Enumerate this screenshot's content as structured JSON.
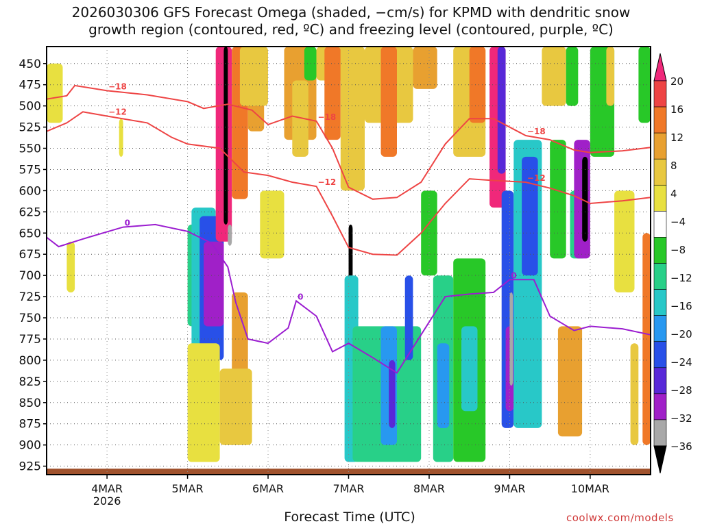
{
  "title_lines": [
    "2026030306 GFS Forecast Omega (shaded, −cm/s) for KPMD with dendritic snow",
    "growth region (contoured, red, ºC) and freezing level (contoured, purple, ºC)"
  ],
  "credit": "coolwx.com/models",
  "chart_data": {
    "type": "heatmap",
    "title": "2026030306 GFS Forecast Omega (shaded, −cm/s) for KPMD with dendritic snow growth region (contoured, red, ºC) and freezing level (contoured, purple, ºC)",
    "xlabel": "Forecast Time (UTC)",
    "ylabel": "",
    "y_axis": {
      "ticks": [
        450,
        475,
        500,
        525,
        550,
        575,
        600,
        625,
        650,
        675,
        700,
        725,
        750,
        775,
        800,
        825,
        850,
        875,
        900,
        925
      ],
      "range": [
        430,
        935
      ],
      "inverted": true
    },
    "x_axis": {
      "tick_labels": [
        {
          "day": 4,
          "label": "4MAR",
          "sub": "2026"
        },
        {
          "day": 5,
          "label": "5MAR",
          "sub": ""
        },
        {
          "day": 6,
          "label": "6MAR",
          "sub": ""
        },
        {
          "day": 7,
          "label": "7MAR",
          "sub": ""
        },
        {
          "day": 8,
          "label": "8MAR",
          "sub": ""
        },
        {
          "day": 9,
          "label": "9MAR",
          "sub": ""
        },
        {
          "day": 10,
          "label": "10MAR",
          "sub": ""
        }
      ],
      "range": [
        3.25,
        10.75
      ]
    },
    "grid": true,
    "colorbar": {
      "labels": [
        "20",
        "16",
        "12",
        "8",
        "4",
        "−4",
        "−8",
        "−12",
        "−16",
        "−20",
        "−24",
        "−28",
        "−32",
        "−36"
      ],
      "colors": [
        "#f0287a",
        "#ee4444",
        "#f07828",
        "#e8a030",
        "#e8c840",
        "#e8e040",
        "#ffffff",
        "#28c828",
        "#28d088",
        "#28c8c8",
        "#2898f0",
        "#2850e8",
        "#5828d8",
        "#a020c8",
        "#a8a8a8",
        "#000000"
      ]
    },
    "series": [
      {
        "name": "red_upper",
        "color": "#ee4444",
        "label": "−18",
        "points": [
          [
            3.25,
            492
          ],
          [
            3.5,
            488
          ],
          [
            3.6,
            476
          ],
          [
            4.0,
            482
          ],
          [
            4.5,
            487
          ],
          [
            5.0,
            495
          ],
          [
            5.2,
            503
          ],
          [
            5.5,
            498
          ],
          [
            5.8,
            505
          ],
          [
            6.0,
            522
          ],
          [
            6.3,
            512
          ],
          [
            6.6,
            518
          ],
          [
            6.8,
            550
          ],
          [
            7.0,
            596
          ],
          [
            7.3,
            610
          ],
          [
            7.6,
            608
          ],
          [
            7.9,
            590
          ],
          [
            8.2,
            545
          ],
          [
            8.5,
            515
          ],
          [
            8.8,
            515
          ],
          [
            9.2,
            535
          ],
          [
            9.5,
            540
          ],
          [
            9.8,
            552
          ],
          [
            10.0,
            555
          ],
          [
            10.4,
            553
          ],
          [
            10.75,
            549
          ]
        ]
      },
      {
        "name": "red_lower",
        "color": "#ee4444",
        "label": "−12",
        "points": [
          [
            3.25,
            530
          ],
          [
            3.5,
            520
          ],
          [
            3.7,
            507
          ],
          [
            4.0,
            512
          ],
          [
            4.5,
            520
          ],
          [
            4.8,
            537
          ],
          [
            5.0,
            545
          ],
          [
            5.4,
            550
          ],
          [
            5.7,
            578
          ],
          [
            6.0,
            582
          ],
          [
            6.3,
            590
          ],
          [
            6.6,
            595
          ],
          [
            6.8,
            630
          ],
          [
            7.0,
            667
          ],
          [
            7.3,
            675
          ],
          [
            7.6,
            676
          ],
          [
            7.9,
            650
          ],
          [
            8.2,
            615
          ],
          [
            8.5,
            586
          ],
          [
            8.8,
            588
          ],
          [
            9.2,
            590
          ],
          [
            9.5,
            597
          ],
          [
            9.8,
            606
          ],
          [
            10.0,
            615
          ],
          [
            10.4,
            612
          ],
          [
            10.75,
            608
          ]
        ]
      },
      {
        "name": "freezing_level",
        "color": "#9b1dd0",
        "label": "0",
        "points": [
          [
            3.25,
            655
          ],
          [
            3.4,
            666
          ],
          [
            3.7,
            657
          ],
          [
            4.2,
            643
          ],
          [
            4.6,
            640
          ],
          [
            5.0,
            648
          ],
          [
            5.3,
            662
          ],
          [
            5.5,
            690
          ],
          [
            5.6,
            732
          ],
          [
            5.75,
            775
          ],
          [
            6.0,
            780
          ],
          [
            6.25,
            762
          ],
          [
            6.35,
            730
          ],
          [
            6.6,
            748
          ],
          [
            6.8,
            790
          ],
          [
            7.0,
            780
          ],
          [
            7.3,
            797
          ],
          [
            7.6,
            815
          ],
          [
            7.9,
            770
          ],
          [
            8.2,
            725
          ],
          [
            8.5,
            722
          ],
          [
            8.8,
            720
          ],
          [
            9.0,
            705
          ],
          [
            9.3,
            705
          ],
          [
            9.5,
            748
          ],
          [
            9.8,
            765
          ],
          [
            10.0,
            760
          ],
          [
            10.4,
            763
          ],
          [
            10.75,
            770
          ]
        ]
      }
    ]
  }
}
